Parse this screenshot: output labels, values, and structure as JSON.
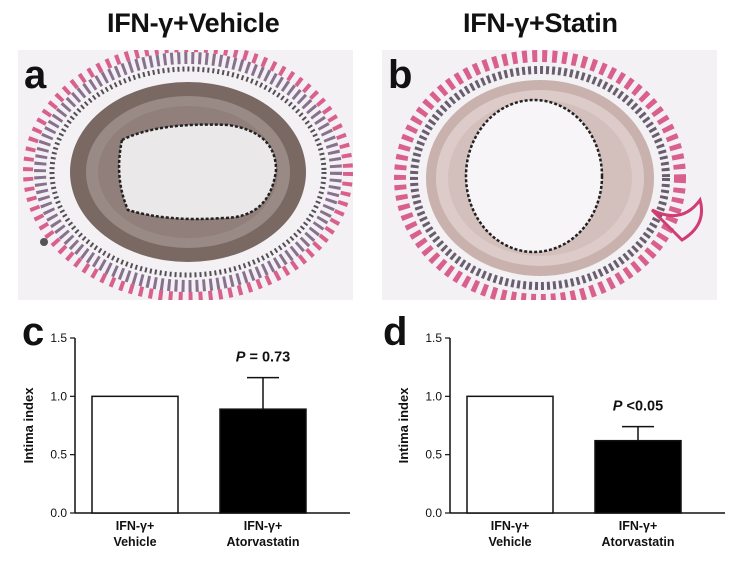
{
  "panels": {
    "a": {
      "letter": "a",
      "title": "IFN-γ+Vehicle"
    },
    "b": {
      "letter": "b",
      "title": "IFN-γ+Statin"
    },
    "c": {
      "letter": "c"
    },
    "d": {
      "letter": "d"
    }
  },
  "micrograph_colors": {
    "adventitia": "#d23c73",
    "media_a": "#7a6863",
    "media_b": "#c9b2ad",
    "background": "#f3f1f3"
  },
  "chart_data": [
    {
      "type": "bar",
      "panel": "c",
      "categories": [
        "IFN-γ+\nVehicle",
        "IFN-γ+\nAtorvastatin"
      ],
      "values": [
        1.0,
        0.89
      ],
      "error": [
        0,
        0.27
      ],
      "fill": [
        "#ffffff",
        "#000000"
      ],
      "ylabel": "Intima index",
      "ylim": [
        0,
        1.5
      ],
      "yticks": [
        "0.0",
        "0.5",
        "1.0",
        "1.5"
      ],
      "annotation": {
        "prefix": "P",
        "text": " = 0.73"
      }
    },
    {
      "type": "bar",
      "panel": "d",
      "categories": [
        "IFN-γ+\nVehicle",
        "IFN-γ+\nAtorvastatin"
      ],
      "values": [
        1.0,
        0.62
      ],
      "error": [
        0,
        0.12
      ],
      "fill": [
        "#ffffff",
        "#000000"
      ],
      "ylabel": "Intima index",
      "ylim": [
        0,
        1.5
      ],
      "yticks": [
        "0.0",
        "0.5",
        "1.0",
        "1.5"
      ],
      "annotation": {
        "prefix": "P",
        "text": " <0.05"
      }
    }
  ]
}
